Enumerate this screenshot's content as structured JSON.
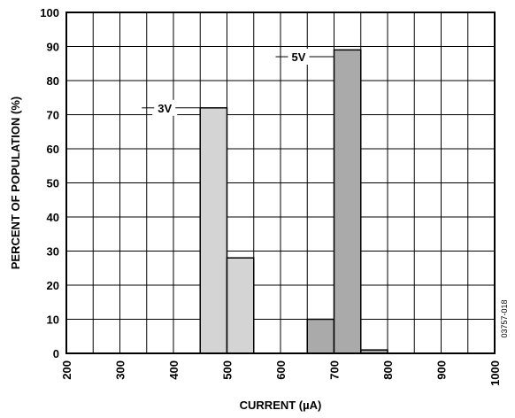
{
  "chart_data": {
    "type": "bar",
    "xlabel": "CURRENT (µA)",
    "ylabel": "PERCENT OF POPULATION (%)",
    "xlim": [
      200,
      1000
    ],
    "ylim": [
      0,
      100
    ],
    "x_tick_labels": [
      "200",
      "300",
      "400",
      "500",
      "600",
      "700",
      "800",
      "900",
      "1000"
    ],
    "y_tick_labels": [
      "0",
      "10",
      "20",
      "30",
      "40",
      "50",
      "60",
      "70",
      "80",
      "90",
      "100"
    ],
    "grid": true,
    "series": [
      {
        "name": "3V",
        "color": "#d4d4d4",
        "bars": [
          {
            "x_start": 450,
            "x_end": 500,
            "value": 72
          },
          {
            "x_start": 500,
            "x_end": 550,
            "value": 28
          }
        ]
      },
      {
        "name": "5V",
        "color": "#aaaaaa",
        "bars": [
          {
            "x_start": 650,
            "x_end": 700,
            "value": 10
          },
          {
            "x_start": 700,
            "x_end": 750,
            "value": 89
          },
          {
            "x_start": 750,
            "x_end": 800,
            "value": 1
          }
        ]
      }
    ],
    "figure_id": "03757-018"
  }
}
